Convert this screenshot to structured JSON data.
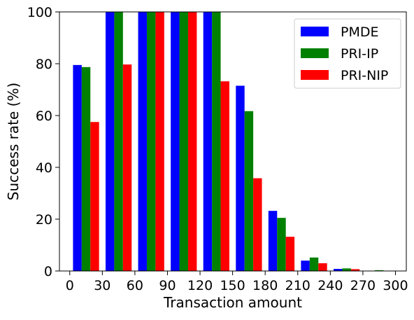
{
  "chart_data": {
    "type": "bar",
    "title": "",
    "xlabel": "Transaction amount",
    "ylabel": "Success rate (%)",
    "xlim": [
      -9.5,
      310
    ],
    "ylim": [
      0,
      100
    ],
    "xticks": [
      0,
      30,
      60,
      90,
      120,
      150,
      180,
      210,
      240,
      270,
      300
    ],
    "yticks": [
      0,
      20,
      40,
      60,
      80,
      100
    ],
    "bin_starts": [
      0,
      30,
      60,
      90,
      120,
      150,
      180,
      210,
      240,
      270
    ],
    "grid": false,
    "legend_position": "upper right",
    "series": [
      {
        "name": "PMDE",
        "color": "#0000ff",
        "values": [
          79.5,
          100,
          100,
          100,
          100,
          71.5,
          23.2,
          4.0,
          0.8,
          0.0
        ]
      },
      {
        "name": "PRI-IP",
        "color": "#008000",
        "values": [
          78.7,
          100,
          100,
          100,
          100,
          61.7,
          20.5,
          5.2,
          1.0,
          0.3
        ]
      },
      {
        "name": "PRI-NIP",
        "color": "#ff0000",
        "values": [
          57.5,
          79.7,
          100,
          100,
          73.2,
          35.8,
          13.2,
          3.0,
          0.7,
          0.0
        ]
      }
    ]
  }
}
